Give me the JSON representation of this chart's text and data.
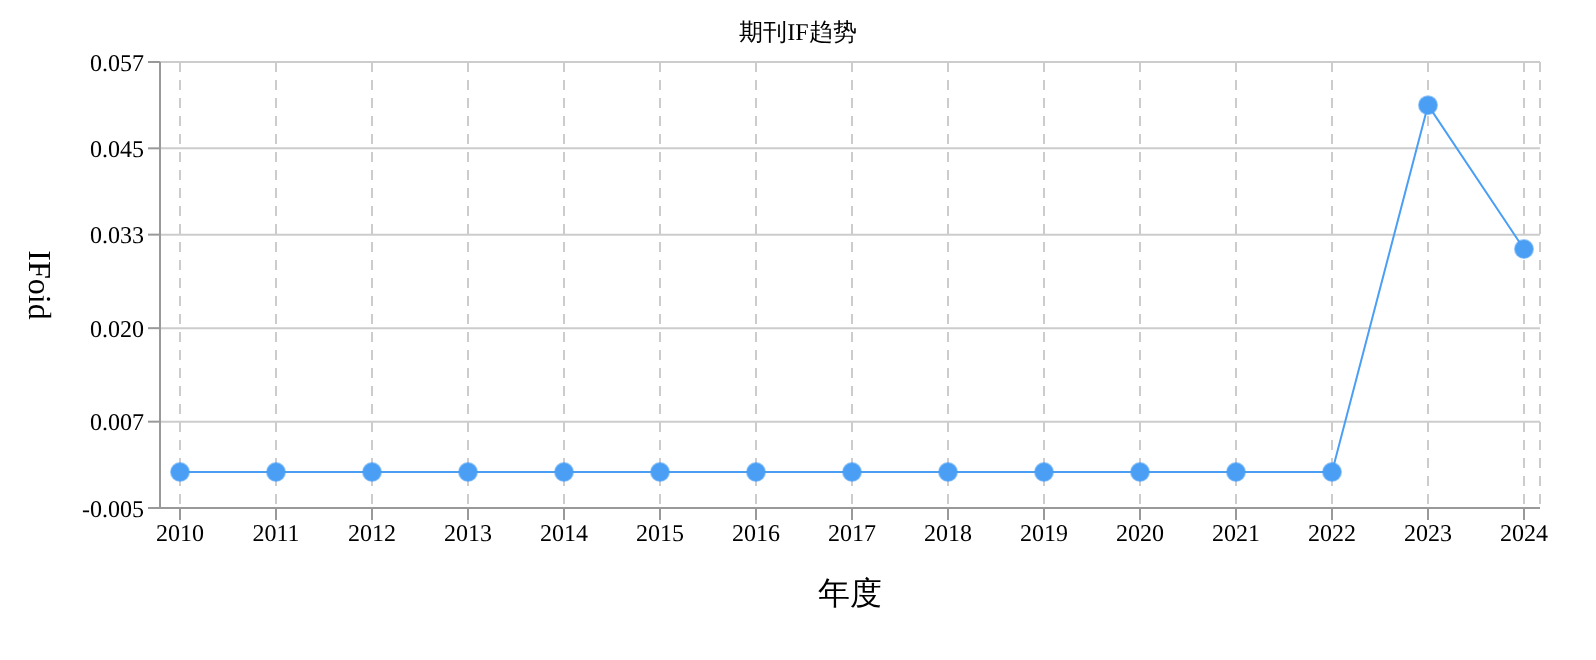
{
  "chart_data": {
    "type": "line",
    "title": "期刊IF趋势",
    "xlabel": "年度",
    "ylabel": "IFoid",
    "categories": [
      "2010",
      "2011",
      "2012",
      "2013",
      "2014",
      "2015",
      "2016",
      "2017",
      "2018",
      "2019",
      "2020",
      "2021",
      "2022",
      "2023",
      "2024"
    ],
    "series": [
      {
        "color": "#4a9ff5",
        "values": [
          0,
          0,
          0,
          0,
          0,
          0,
          0,
          0,
          0,
          0,
          0,
          0,
          0,
          0.051,
          0.031
        ]
      }
    ],
    "ylim": [
      -0.005,
      0.057
    ],
    "yticks": [
      -0.005,
      0.007,
      {
        "value": 0.02,
        "label": "0.020"
      },
      0.033,
      0.045,
      0.057
    ],
    "grid": true,
    "marker": "circle",
    "line_style": "solid"
  }
}
